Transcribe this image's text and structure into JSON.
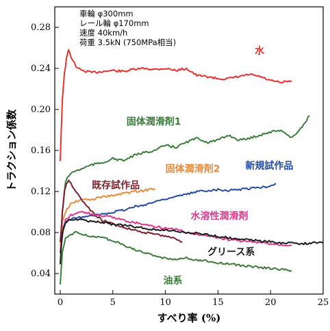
{
  "chart_data": {
    "type": "line",
    "xlabel": "すべり率 (%)",
    "ylabel": "トラクション係数",
    "xlim": [
      0,
      25
    ],
    "ylim": [
      0.02,
      0.3
    ],
    "x_ticks": [
      "0",
      "5",
      "10",
      "15",
      "20",
      "25"
    ],
    "y_ticks": [
      "0.04",
      "0.08",
      "0.12",
      "0.16",
      "0.20",
      "0.24",
      "0.28"
    ],
    "conditions": [
      "車輪 φ300mm",
      "レール輪 φ170mm",
      "速度 40km/h",
      "荷重 3.5kN (750MPa相当)"
    ],
    "grid": false,
    "series": [
      {
        "name": "水",
        "color": "#e8312f",
        "x": [
          0,
          0.2,
          0.4,
          0.6,
          0.8,
          1,
          1.5,
          2,
          3,
          4,
          5,
          6,
          7,
          8,
          9,
          10,
          11,
          12,
          13,
          14,
          15,
          16,
          17,
          18,
          19,
          20,
          21,
          22
        ],
        "y": [
          0.15,
          0.21,
          0.235,
          0.25,
          0.258,
          0.252,
          0.242,
          0.238,
          0.236,
          0.237,
          0.238,
          0.237,
          0.239,
          0.24,
          0.239,
          0.24,
          0.238,
          0.24,
          0.233,
          0.232,
          0.23,
          0.23,
          0.232,
          0.234,
          0.232,
          0.228,
          0.226,
          0.228
        ],
        "label_text_x": 18.5,
        "label_text_y": 0.254
      },
      {
        "name": "固体潤滑剤1",
        "color": "#3a7d3a",
        "x": [
          0,
          0.2,
          0.5,
          1,
          1.5,
          2,
          3,
          4,
          5,
          6,
          7,
          8,
          9,
          10,
          11,
          12,
          13,
          14,
          15,
          16,
          17,
          18,
          19,
          20,
          21,
          22,
          23,
          23.7
        ],
        "y": [
          0.06,
          0.1,
          0.13,
          0.138,
          0.14,
          0.142,
          0.146,
          0.148,
          0.152,
          0.15,
          0.155,
          0.158,
          0.16,
          0.165,
          0.163,
          0.168,
          0.172,
          0.168,
          0.17,
          0.175,
          0.17,
          0.172,
          0.175,
          0.178,
          0.18,
          0.172,
          0.183,
          0.194
        ],
        "label_text_x": 6.3,
        "label_text_y": 0.185
      },
      {
        "name": "固体潤滑剤2",
        "color": "#e98a3a",
        "x": [
          0,
          0.2,
          0.5,
          1,
          1.5,
          2,
          3,
          4,
          5,
          6,
          7,
          8,
          9
        ],
        "y": [
          0.06,
          0.09,
          0.1,
          0.108,
          0.11,
          0.112,
          0.112,
          0.115,
          0.116,
          0.118,
          0.12,
          0.121,
          0.123
        ],
        "label_text_x": 10.0,
        "label_text_y": 0.139
      },
      {
        "name": "新規試作品",
        "color": "#1f4aa6",
        "x": [
          0,
          0.3,
          0.5,
          1,
          1.5,
          2,
          3,
          4,
          5,
          6,
          7,
          8,
          9,
          10,
          11,
          12,
          13,
          14,
          15,
          16,
          17,
          18,
          19,
          20,
          20.5
        ],
        "y": [
          0.06,
          0.085,
          0.09,
          0.093,
          0.094,
          0.095,
          0.096,
          0.098,
          0.1,
          0.102,
          0.105,
          0.107,
          0.11,
          0.113,
          0.115,
          0.117,
          0.12,
          0.121,
          0.122,
          0.121,
          0.122,
          0.123,
          0.124,
          0.125,
          0.128
        ],
        "label_text_x": 17.6,
        "label_text_y": 0.142
      },
      {
        "name": "既存試作品",
        "color": "#7a1f2b",
        "x": [
          0,
          0.2,
          0.4,
          0.6,
          0.8,
          1,
          1.5,
          2,
          3,
          4,
          5,
          6,
          7,
          8,
          9,
          10,
          11,
          11.6
        ],
        "y": [
          0.07,
          0.1,
          0.12,
          0.128,
          0.13,
          0.128,
          0.12,
          0.112,
          0.1,
          0.092,
          0.088,
          0.085,
          0.083,
          0.08,
          0.078,
          0.077,
          0.074,
          0.071
        ],
        "label_text_x": 3.0,
        "label_text_y": 0.123
      },
      {
        "name": "水溶性潤滑剤",
        "color": "#e0368f",
        "x": [
          0,
          0.2,
          0.5,
          1,
          1.5,
          2,
          3,
          4,
          5,
          6,
          7,
          8,
          9,
          10,
          11,
          12,
          13,
          14,
          15,
          16,
          17,
          18,
          19,
          20,
          21,
          22
        ],
        "y": [
          0.06,
          0.08,
          0.092,
          0.097,
          0.099,
          0.1,
          0.098,
          0.096,
          0.095,
          0.092,
          0.09,
          0.088,
          0.086,
          0.084,
          0.083,
          0.08,
          0.078,
          0.077,
          0.075,
          0.073,
          0.072,
          0.071,
          0.07,
          0.069,
          0.068,
          0.068
        ],
        "label_text_x": 12.4,
        "label_text_y": 0.093
      },
      {
        "name": "グリース系",
        "color": "#1a1a1a",
        "x": [
          0,
          0.2,
          0.5,
          1,
          1.5,
          2,
          3,
          4,
          5,
          6,
          7,
          8,
          9,
          10,
          11,
          12,
          13,
          14,
          15,
          16,
          17,
          18,
          19,
          20,
          21,
          22,
          23,
          24,
          25
        ],
        "y": [
          0.05,
          0.08,
          0.09,
          0.093,
          0.093,
          0.092,
          0.091,
          0.09,
          0.088,
          0.087,
          0.086,
          0.084,
          0.083,
          0.082,
          0.081,
          0.08,
          0.079,
          0.078,
          0.076,
          0.075,
          0.074,
          0.073,
          0.072,
          0.071,
          0.07,
          0.07,
          0.069,
          0.07,
          0.07
        ],
        "label_text_x": 14.0,
        "label_text_y": 0.058
      },
      {
        "name": "油系",
        "color": "#3a7d3a",
        "x": [
          0,
          0.2,
          0.5,
          1,
          1.5,
          2,
          3,
          4,
          5,
          6,
          7,
          8,
          9,
          10,
          11,
          12,
          13,
          14,
          15,
          16,
          17,
          18,
          19,
          20,
          21,
          22
        ],
        "y": [
          0.03,
          0.06,
          0.075,
          0.078,
          0.08,
          0.079,
          0.076,
          0.075,
          0.072,
          0.068,
          0.064,
          0.06,
          0.057,
          0.055,
          0.054,
          0.055,
          0.053,
          0.052,
          0.05,
          0.05,
          0.048,
          0.047,
          0.046,
          0.045,
          0.044,
          0.043
        ],
        "label_text_x": 9.8,
        "label_text_y": 0.03
      }
    ]
  }
}
